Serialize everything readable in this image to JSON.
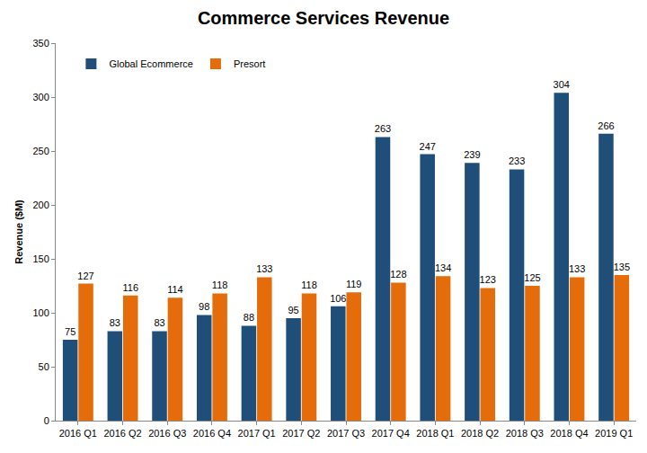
{
  "chart_data": {
    "type": "bar",
    "title": "Commerce Services Revenue",
    "y_label": "Revenue ($M)",
    "categories": [
      "2016 Q1",
      "2016 Q2",
      "2016 Q3",
      "2016 Q4",
      "2017 Q1",
      "2017 Q2",
      "2017 Q3",
      "2017 Q4",
      "2018 Q1",
      "2018 Q2",
      "2018 Q3",
      "2018 Q4",
      "2019 Q1"
    ],
    "series": [
      {
        "name": "Global Ecommerce",
        "color": "#1f4e79",
        "values": [
          75,
          83,
          83,
          98,
          88,
          95,
          106,
          263,
          247,
          239,
          233,
          304,
          266
        ]
      },
      {
        "name": "Presort",
        "color": "#e46c0a",
        "values": [
          127,
          116,
          114,
          118,
          133,
          118,
          119,
          128,
          134,
          123,
          125,
          133,
          135
        ]
      }
    ],
    "ylim": [
      0,
      350
    ],
    "yticks": [
      0,
      50,
      100,
      150,
      200,
      250,
      300,
      350
    ],
    "grid": false,
    "legend": "upper left",
    "data_labels": true
  }
}
